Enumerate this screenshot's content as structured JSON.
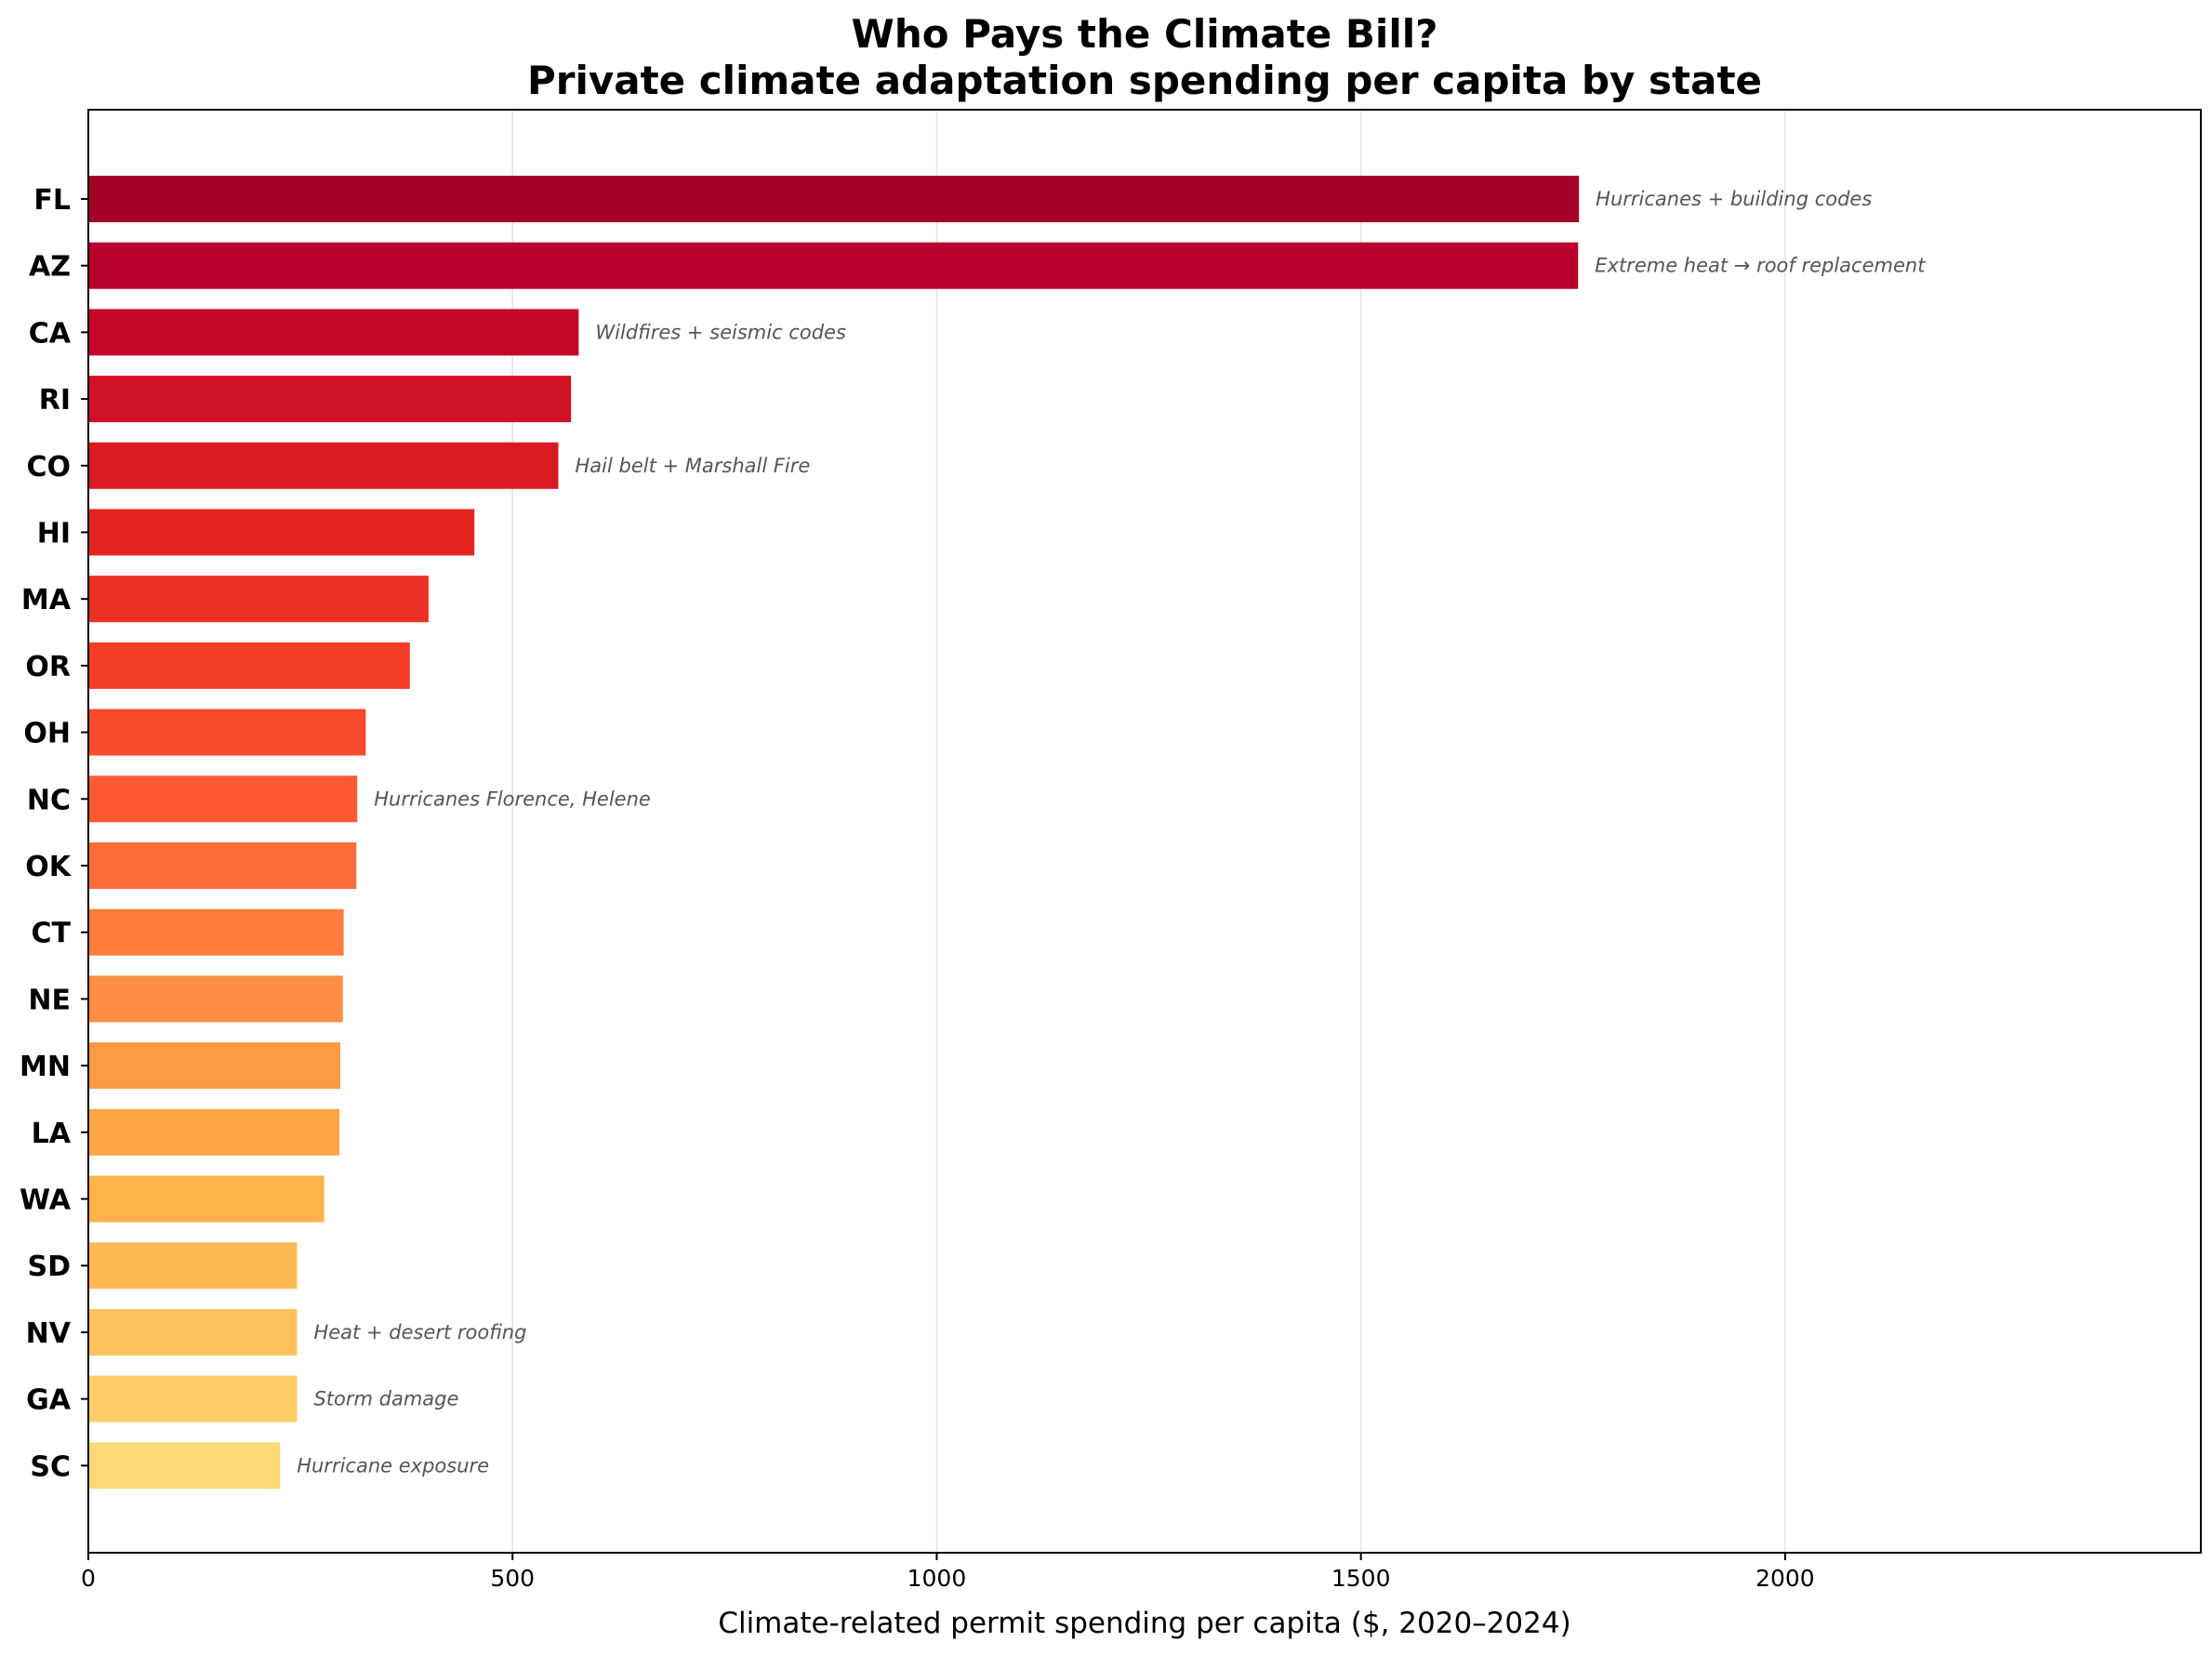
{
  "chart_data": {
    "type": "bar",
    "orientation": "horizontal",
    "title": "Who Pays the Climate Bill?",
    "subtitle": "Private climate adaptation spending per capita by state",
    "xlabel": "Climate-related permit spending per capita ($, 2020–2024)",
    "ylabel": "",
    "xlim": [
      0,
      2490
    ],
    "xticks": [
      0,
      500,
      1000,
      1500,
      2000
    ],
    "grid": "vertical",
    "categories": [
      "FL",
      "AZ",
      "CA",
      "RI",
      "CO",
      "HI",
      "MA",
      "OR",
      "OH",
      "NC",
      "OK",
      "CT",
      "NE",
      "MN",
      "LA",
      "WA",
      "SD",
      "NV",
      "GA",
      "SC"
    ],
    "values": [
      1757,
      1756,
      578,
      569,
      554,
      455,
      401,
      379,
      327,
      317,
      316,
      301,
      300,
      297,
      296,
      278,
      246,
      246,
      246,
      226
    ],
    "annotations": [
      {
        "category": "FL",
        "text": "Hurricanes + building codes"
      },
      {
        "category": "AZ",
        "text": "Extreme heat → roof replacement"
      },
      {
        "category": "CA",
        "text": "Wildfires + seismic codes"
      },
      {
        "category": "CO",
        "text": "Hail belt + Marshall Fire"
      },
      {
        "category": "NC",
        "text": "Hurricanes Florence, Helene"
      },
      {
        "category": "NV",
        "text": "Heat + desert roofing"
      },
      {
        "category": "GA",
        "text": "Storm damage"
      },
      {
        "category": "SC",
        "text": "Hurricane exposure"
      }
    ],
    "colors": [
      "#a50026",
      "#b7002b",
      "#c60727",
      "#d01225",
      "#da1c22",
      "#e42421",
      "#ec3024",
      "#f43d27",
      "#fa4b2c",
      "#fd5a31",
      "#fd6c38",
      "#fd7d3f",
      "#fd8e42",
      "#fd9a44",
      "#fea647",
      "#feb24c",
      "#feb955",
      "#fec35f",
      "#fecd69",
      "#ffd976"
    ]
  }
}
